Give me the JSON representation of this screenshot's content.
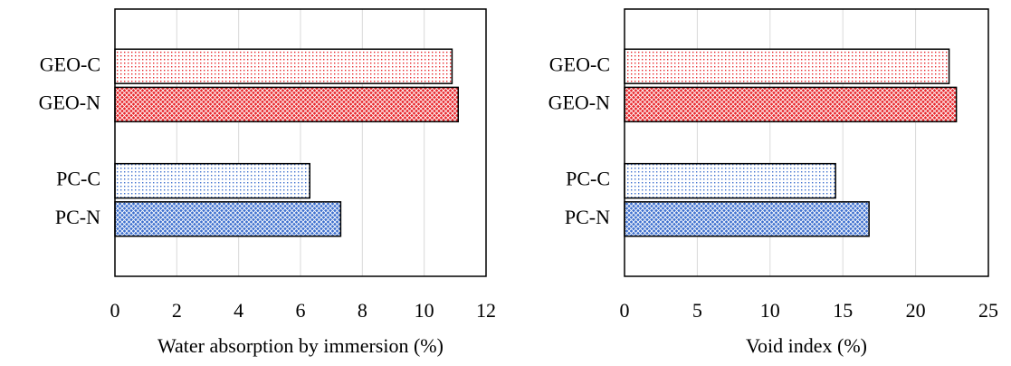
{
  "chart_data": [
    {
      "type": "bar",
      "orientation": "horizontal",
      "x_label": "Water absorption by immersion (%)",
      "categories": [
        null,
        "GEO-C",
        "GEO-N",
        null,
        "PC-C",
        "PC-N",
        null
      ],
      "values": [
        null,
        10.9,
        11.1,
        null,
        6.3,
        7.3,
        null
      ],
      "colors": [
        null,
        "#e8262b",
        "#e8262b",
        null,
        "#3d6fce",
        "#3d6fce",
        null
      ],
      "patterns": [
        null,
        "dots",
        "crosshatch",
        null,
        "dots",
        "crosshatch",
        null
      ],
      "xlim": [
        0,
        12
      ],
      "xticks": [
        0,
        2,
        4,
        6,
        8,
        10,
        12
      ],
      "grid": true
    },
    {
      "type": "bar",
      "orientation": "horizontal",
      "x_label": "Void index (%)",
      "categories": [
        null,
        "GEO-C",
        "GEO-N",
        null,
        "PC-C",
        "PC-N",
        null
      ],
      "values": [
        null,
        22.3,
        22.8,
        null,
        14.5,
        16.8,
        null
      ],
      "colors": [
        null,
        "#e8262b",
        "#e8262b",
        null,
        "#3d6fce",
        "#3d6fce",
        null
      ],
      "patterns": [
        null,
        "dots",
        "crosshatch",
        null,
        "dots",
        "crosshatch",
        null
      ],
      "xlim": [
        0,
        25
      ],
      "xticks": [
        0,
        5,
        10,
        15,
        20,
        25
      ],
      "grid": true
    }
  ]
}
